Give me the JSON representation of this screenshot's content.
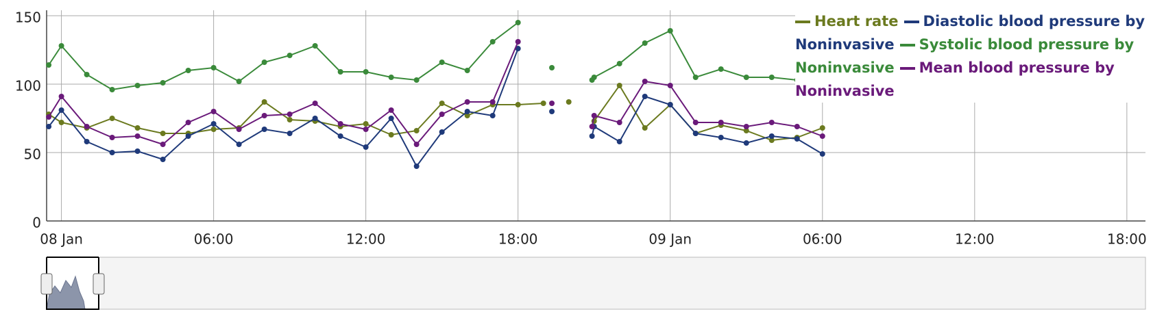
{
  "chart_data": {
    "type": "line",
    "x": [
      "07 Jan 23:30",
      "08 Jan 00:00",
      "08 Jan 01:00",
      "08 Jan 02:00",
      "08 Jan 03:00",
      "08 Jan 04:00",
      "08 Jan 05:00",
      "08 Jan 06:00",
      "08 Jan 07:00",
      "08 Jan 08:00",
      "08 Jan 09:00",
      "08 Jan 10:00",
      "08 Jan 11:00",
      "08 Jan 12:00",
      "08 Jan 13:00",
      "08 Jan 14:00",
      "08 Jan 15:00",
      "08 Jan 16:00",
      "08 Jan 17:00",
      "08 Jan 18:00",
      "08 Jan 19:00",
      "08 Jan 19:20",
      "08 Jan 20:00",
      "08 Jan 20:55",
      "08 Jan 21:00",
      "08 Jan 22:00",
      "08 Jan 23:00",
      "09 Jan 00:00",
      "09 Jan 01:00",
      "09 Jan 02:00",
      "09 Jan 03:00",
      "09 Jan 04:00",
      "09 Jan 05:00",
      "09 Jan 06:00"
    ],
    "series": [
      {
        "name": "Heart rate",
        "color": "#6b7a1f",
        "values": [
          78,
          72,
          68,
          75,
          68,
          64,
          64,
          67,
          68,
          87,
          74,
          73,
          69,
          71,
          63,
          66,
          86,
          77,
          85,
          85,
          86,
          null,
          87,
          null,
          73,
          99,
          68,
          85,
          64,
          70,
          66,
          59,
          61,
          68
        ]
      },
      {
        "name": "Diastolic blood pressure by Noninvasive",
        "color": "#1f3a7a",
        "values": [
          69,
          81,
          58,
          50,
          51,
          45,
          62,
          71,
          56,
          67,
          64,
          75,
          62,
          54,
          75,
          40,
          65,
          80,
          77,
          126,
          null,
          80,
          null,
          62,
          69,
          58,
          91,
          85,
          64,
          61,
          57,
          62,
          60,
          49
        ]
      },
      {
        "name": "Systolic blood pressure by Noninvasive",
        "color": "#3a8a3a",
        "values": [
          114,
          128,
          107,
          96,
          99,
          101,
          110,
          112,
          102,
          116,
          121,
          128,
          109,
          109,
          105,
          103,
          116,
          110,
          131,
          145,
          null,
          112,
          null,
          103,
          105,
          115,
          130,
          139,
          105,
          111,
          105,
          105,
          103,
          null
        ]
      },
      {
        "name": "Mean blood pressure by Noninvasive",
        "color": "#6a1a7a",
        "values": [
          76,
          91,
          69,
          61,
          62,
          56,
          72,
          80,
          67,
          77,
          78,
          86,
          71,
          67,
          81,
          56,
          78,
          87,
          87,
          131,
          null,
          86,
          null,
          69,
          77,
          72,
          102,
          99,
          72,
          72,
          69,
          72,
          69,
          62
        ]
      }
    ],
    "xlim": [
      "07 Jan 23:25",
      "09 Jan 18:44"
    ],
    "xticks": [
      {
        "value": "08 Jan 00:00",
        "label": "08 Jan"
      },
      {
        "value": "08 Jan 06:00",
        "label": "06:00"
      },
      {
        "value": "08 Jan 12:00",
        "label": "12:00"
      },
      {
        "value": "08 Jan 18:00",
        "label": "18:00"
      },
      {
        "value": "09 Jan 00:00",
        "label": "09 Jan"
      },
      {
        "value": "09 Jan 06:00",
        "label": "06:00"
      },
      {
        "value": "09 Jan 12:00",
        "label": "12:00"
      },
      {
        "value": "09 Jan 18:00",
        "label": "18:00"
      }
    ],
    "ylim": [
      0,
      154
    ],
    "yticks": [
      0,
      50,
      100,
      150
    ],
    "grid": true,
    "legend": "top-right"
  }
}
